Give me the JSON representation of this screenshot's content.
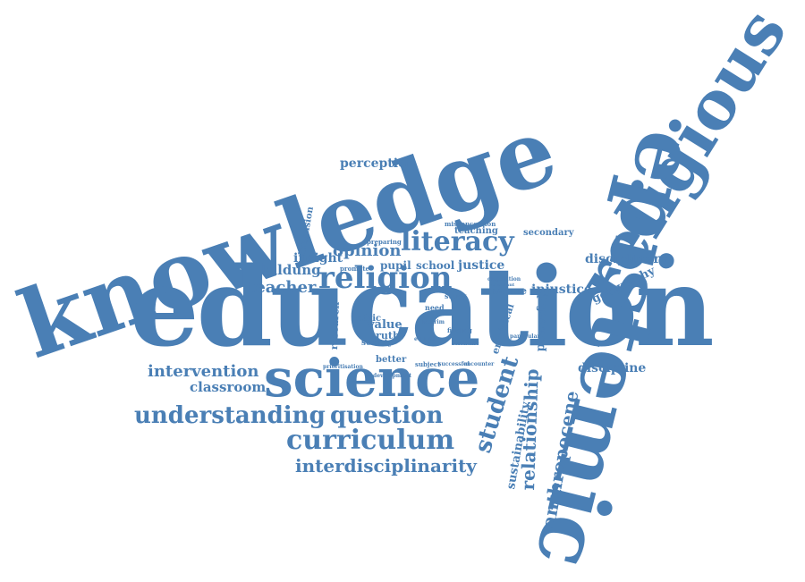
{
  "colors": {
    "word": "#4a7fb5",
    "background": "#ffffff"
  },
  "words": {
    "knowledge": "knowledge",
    "education": "education",
    "religious": "religious",
    "epistemic": "epistemic",
    "science": "science",
    "religion": "religion",
    "literacy": "literacy",
    "curriculum": "curriculum",
    "understanding": "understanding",
    "question": "question",
    "interdisciplinarity": "interdisciplinarity",
    "intervention": "intervention",
    "classroom": "classroom",
    "student": "student",
    "relationship": "relationship",
    "anthropocene": "anthropocene",
    "sustainability": "sustainability",
    "teacher": "teacher",
    "perception": "perception",
    "opinion": "opinion",
    "insight": "insight",
    "bildung": "bildung",
    "justice": "justice",
    "injustice": "injustice",
    "geography": "geography",
    "disciplinary": "disciplinary",
    "discipline": "discipline",
    "secondary": "secondary",
    "teaching": "teaching",
    "misconception": "misconception",
    "dimension": "dimension",
    "preparing": "preparing",
    "pupil": "pupil",
    "school": "school",
    "nature": "nature",
    "study": "study",
    "research": "research",
    "ethic": "ethic",
    "value": "value",
    "truth": "truth",
    "society": "society",
    "better": "better",
    "subject": "subject",
    "prioritisation": "prioritisation",
    "development": "development",
    "empirical": "empirical",
    "powerful": "powerful",
    "finding": "finding",
    "promote": "promote",
    "need": "need",
    "ethical": "ethical",
    "scientific": "scientific",
    "particular": "particular",
    "successful": "successful",
    "encounter": "encounter",
    "disposition": "disposition",
    "important": "important",
    "interim": "interim"
  }
}
